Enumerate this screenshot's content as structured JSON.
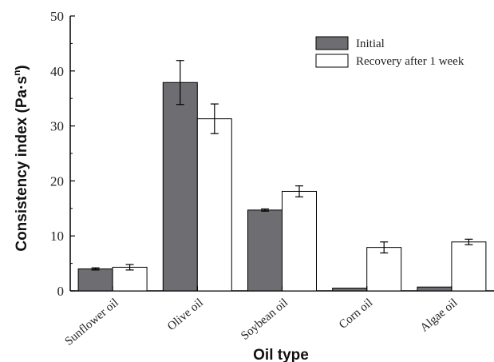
{
  "chart_data": {
    "type": "bar",
    "xlabel": "Oil type",
    "ylabel": "Consistency index (Pa·s",
    "ylabel_superscript": "n",
    "ylabel_suffix": ")",
    "ylim": [
      0,
      50
    ],
    "yticks": [
      "0",
      "10",
      "20",
      "30",
      "40",
      "50"
    ],
    "categories": [
      "Sunflower oil",
      "Olive oil",
      "Soybean oil",
      "Corn oil",
      "Algae oil"
    ],
    "series": [
      {
        "name": "Initial",
        "color": "#6e6e72",
        "values": [
          4.0,
          37.9,
          14.7,
          0.5,
          0.7
        ],
        "errors": [
          0.2,
          4.0,
          0.2,
          0.05,
          0.05
        ]
      },
      {
        "name": "Recovery after 1 week",
        "color": "#ffffff",
        "values": [
          4.3,
          31.3,
          18.1,
          7.9,
          8.9
        ],
        "errors": [
          0.5,
          2.7,
          1.0,
          1.0,
          0.5
        ]
      }
    ],
    "legend_position": "top-right",
    "grid": false
  }
}
